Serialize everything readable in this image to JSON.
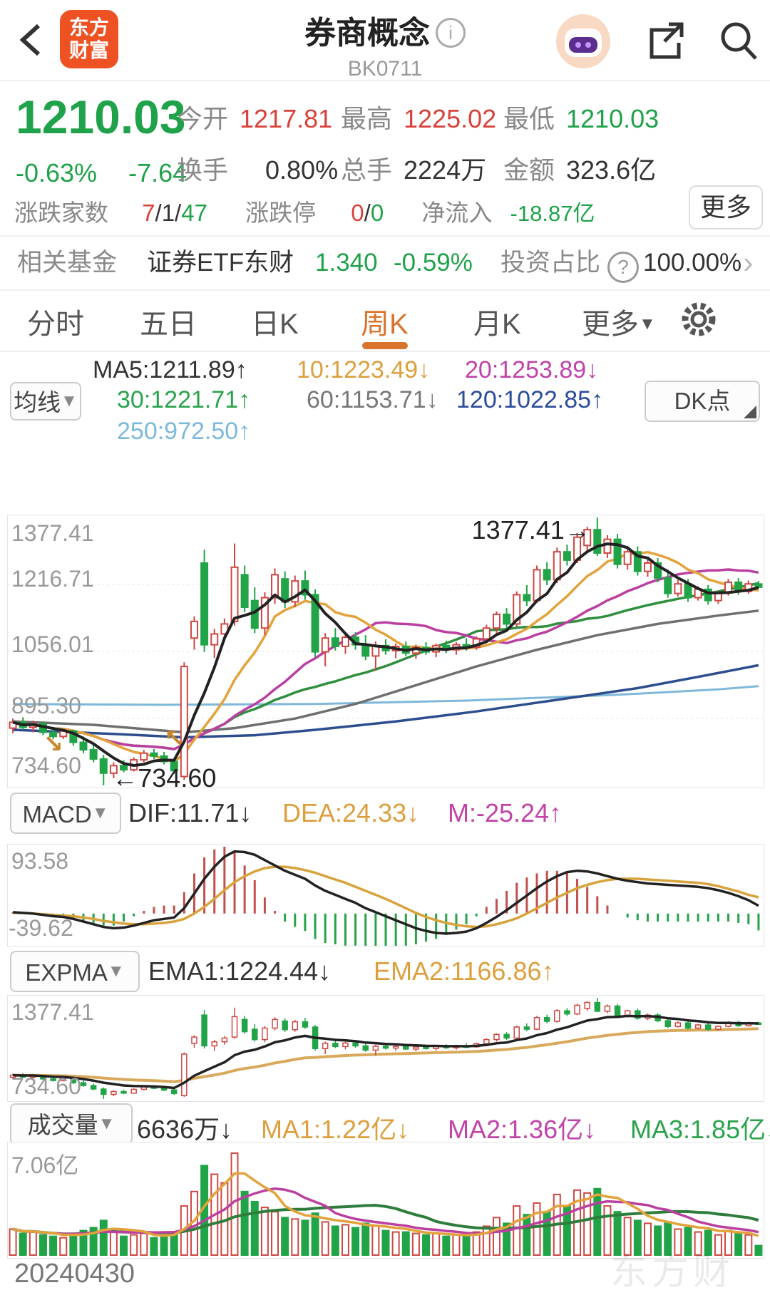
{
  "colors": {
    "up_red": "#cf4742",
    "down_green": "#21a447",
    "accent_orange": "#d9742d",
    "ma5": "#222222",
    "ma10": "#e3a33c",
    "ma20": "#bb3fa0",
    "ma30": "#2f8f3e",
    "ma60": "#6f6f6f",
    "ma120": "#2c4d8e",
    "ma250": "#7fb8d8",
    "dea_orange": "#d8a33c",
    "marker_gold": "#c8872b"
  },
  "header": {
    "logo_line1": "东方",
    "logo_line2": "财富",
    "title": "券商概念",
    "info": "i",
    "code": "BK0711"
  },
  "quote": {
    "price": "1210.03",
    "change_pct": "-0.63%",
    "change": "-7.64",
    "stats": [
      {
        "label": "今开",
        "value": "1217.81"
      },
      {
        "label": "最高",
        "value": "1225.02"
      },
      {
        "label": "最低",
        "value": "1210.03"
      },
      {
        "label": "换手",
        "value": "0.80%"
      },
      {
        "label": "总手",
        "value": "2224万"
      },
      {
        "label": "金额",
        "value": "323.6亿"
      }
    ],
    "row3": {
      "label1": "涨跌家数",
      "up": "7",
      "mid": "/1/",
      "down": "47",
      "label2": "涨跌停",
      "zt": "0",
      "sep": "/",
      "dt": "0",
      "label3": "净流入",
      "inflow": "-18.87亿",
      "more": "更多"
    }
  },
  "fund": {
    "label": "相关基金",
    "name": "证券ETF东财",
    "nav": "1.340",
    "pct": "-0.59%",
    "ratio_label": "投资占比",
    "q": "?",
    "ratio": "100.00%",
    "chevron": "›"
  },
  "tabs": [
    {
      "label": "分时"
    },
    {
      "label": "五日"
    },
    {
      "label": "日K"
    },
    {
      "label": "周K"
    },
    {
      "label": "月K"
    },
    {
      "label": "更多"
    }
  ],
  "ma_panel": {
    "button": "均线",
    "dk_button": "DK点",
    "ma5": "MA5:1211.89↑",
    "ma10": "10:1223.49↓",
    "ma20": "20:1253.89↓",
    "ma30": "30:1221.71↑",
    "ma60": "60:1153.71↓",
    "ma120": "120:1022.85↑",
    "ma250": "250:972.50↑"
  },
  "main_chart": {
    "y_labels": [
      "1377.41",
      "1216.71",
      "1056.01",
      "895.30",
      "734.60"
    ],
    "high_annotation": "1377.41→",
    "low_annotation": "←734.60",
    "watermark": "东方财富"
  },
  "macd_panel": {
    "button": "MACD",
    "dif": "DIF:11.71↓",
    "dea": "DEA:24.33↓",
    "m": "M:-25.24↑",
    "ymax": "93.58",
    "ymin": "-39.62"
  },
  "expma_panel": {
    "button": "EXPMA",
    "ema1": "EMA1:1224.44↓",
    "ema2": "EMA2:1166.86↑",
    "ymax": "1377.41",
    "ymin": "734.60"
  },
  "vol_panel": {
    "button": "成交量",
    "vol": "6636万↓",
    "ma1": "MA1:1.22亿↓",
    "ma2": "MA2:1.36亿↓",
    "ma3": "MA3:1.85亿↓",
    "ymax": "7.06亿",
    "date": "20240430"
  },
  "chart_data": {
    "type": "candlestick",
    "title": "券商概念 BK0711 周K",
    "price_range": [
      734.6,
      1377.41
    ],
    "grid_prices": [
      1216.71,
      1056.01,
      895.3
    ],
    "macd_range": [
      -45,
      100
    ],
    "vol_range": [
      0,
      7.5
    ],
    "candles": [
      [
        872,
        895,
        860,
        886
      ],
      [
        886,
        898,
        868,
        874
      ],
      [
        874,
        890,
        862,
        882
      ],
      [
        882,
        888,
        855,
        862
      ],
      [
        862,
        875,
        845,
        852
      ],
      [
        852,
        870,
        846,
        865
      ],
      [
        865,
        868,
        830,
        838
      ],
      [
        838,
        852,
        812,
        820
      ],
      [
        820,
        832,
        790,
        798
      ],
      [
        798,
        808,
        734.6,
        764
      ],
      [
        764,
        790,
        752,
        782
      ],
      [
        782,
        795,
        766,
        772
      ],
      [
        772,
        802,
        768,
        796
      ],
      [
        796,
        820,
        790,
        812
      ],
      [
        812,
        822,
        798,
        805
      ],
      [
        805,
        815,
        785,
        792
      ],
      [
        792,
        800,
        762,
        770
      ],
      [
        756,
        1030,
        748,
        1020
      ],
      [
        1088,
        1140,
        1060,
        1128
      ],
      [
        1268,
        1300,
        1055,
        1072
      ],
      [
        1072,
        1110,
        1040,
        1098
      ],
      [
        1098,
        1135,
        1080,
        1122
      ],
      [
        1128,
        1315,
        1118,
        1258
      ],
      [
        1240,
        1262,
        1150,
        1162
      ],
      [
        1178,
        1210,
        1100,
        1112
      ],
      [
        1112,
        1198,
        1095,
        1185
      ],
      [
        1185,
        1255,
        1170,
        1240
      ],
      [
        1230,
        1248,
        1160,
        1175
      ],
      [
        1175,
        1238,
        1162,
        1225
      ],
      [
        1225,
        1250,
        1180,
        1192
      ],
      [
        1192,
        1205,
        1042,
        1055
      ],
      [
        1055,
        1100,
        1020,
        1088
      ],
      [
        1088,
        1112,
        1058,
        1068
      ],
      [
        1068,
        1098,
        1050,
        1090
      ],
      [
        1090,
        1102,
        1060,
        1072
      ],
      [
        1072,
        1095,
        1035,
        1045
      ],
      [
        1045,
        1080,
        1010,
        1070
      ],
      [
        1070,
        1085,
        1048,
        1058
      ],
      [
        1058,
        1075,
        1040,
        1068
      ],
      [
        1068,
        1080,
        1045,
        1052
      ],
      [
        1052,
        1072,
        1038,
        1065
      ],
      [
        1065,
        1078,
        1048,
        1055
      ],
      [
        1055,
        1075,
        1042,
        1070
      ],
      [
        1070,
        1082,
        1052,
        1060
      ],
      [
        1060,
        1078,
        1048,
        1072
      ],
      [
        1072,
        1088,
        1058,
        1066
      ],
      [
        1066,
        1092,
        1060,
        1086
      ],
      [
        1086,
        1120,
        1078,
        1112
      ],
      [
        1112,
        1152,
        1100,
        1145
      ],
      [
        1145,
        1160,
        1110,
        1122
      ],
      [
        1122,
        1200,
        1115,
        1192
      ],
      [
        1192,
        1215,
        1165,
        1178
      ],
      [
        1178,
        1262,
        1172,
        1252
      ],
      [
        1252,
        1270,
        1215,
        1228
      ],
      [
        1228,
        1305,
        1220,
        1295
      ],
      [
        1295,
        1312,
        1262,
        1275
      ],
      [
        1275,
        1340,
        1268,
        1330
      ],
      [
        1310,
        1355,
        1295,
        1348
      ],
      [
        1348,
        1377.41,
        1285,
        1292
      ],
      [
        1292,
        1335,
        1280,
        1325
      ],
      [
        1325,
        1338,
        1255,
        1265
      ],
      [
        1265,
        1302,
        1252,
        1295
      ],
      [
        1295,
        1308,
        1238,
        1248
      ],
      [
        1248,
        1278,
        1235,
        1268
      ],
      [
        1268,
        1280,
        1222,
        1232
      ],
      [
        1232,
        1252,
        1185,
        1195
      ],
      [
        1195,
        1228,
        1188,
        1218
      ],
      [
        1218,
        1230,
        1175,
        1185
      ],
      [
        1185,
        1212,
        1178,
        1205
      ],
      [
        1205,
        1215,
        1168,
        1178
      ],
      [
        1178,
        1202,
        1170,
        1196
      ],
      [
        1196,
        1230,
        1190,
        1222
      ],
      [
        1222,
        1232,
        1192,
        1200
      ],
      [
        1200,
        1226,
        1194,
        1218
      ],
      [
        1217.81,
        1225.02,
        1210.03,
        1210.03
      ]
    ],
    "volumes": [
      1.8,
      1.5,
      1.6,
      1.4,
      1.3,
      1.2,
      1.5,
      1.7,
      1.9,
      2.4,
      1.6,
      1.3,
      1.4,
      1.5,
      1.2,
      1.3,
      1.6,
      3.4,
      4.4,
      6.2,
      5.6,
      5.0,
      7.06,
      4.4,
      3.7,
      3.3,
      3.0,
      2.6,
      2.5,
      2.4,
      2.9,
      2.3,
      2.0,
      2.1,
      1.9,
      2.2,
      2.0,
      1.7,
      1.6,
      1.6,
      1.5,
      1.4,
      1.5,
      1.3,
      1.4,
      1.3,
      1.6,
      2.0,
      2.6,
      2.2,
      3.4,
      2.8,
      3.6,
      3.0,
      4.2,
      3.4,
      4.5,
      4.3,
      4.6,
      3.4,
      3.0,
      2.6,
      2.4,
      2.2,
      2.0,
      2.3,
      1.8,
      1.9,
      1.6,
      1.7,
      1.4,
      1.7,
      1.5,
      1.4,
      0.66
    ],
    "macd": {
      "dif": [
        2,
        1,
        0,
        -2,
        -4,
        -5,
        -8,
        -12,
        -16,
        -20,
        -22,
        -21,
        -18,
        -14,
        -10,
        -8,
        -6,
        8,
        30,
        52,
        70,
        85,
        93,
        92,
        88,
        80,
        72,
        64,
        58,
        52,
        42,
        34,
        28,
        22,
        16,
        8,
        2,
        -4,
        -10,
        -16,
        -22,
        -26,
        -29,
        -30,
        -29,
        -27,
        -22,
        -14,
        -5,
        5,
        16,
        27,
        38,
        48,
        56,
        62,
        64,
        63,
        60,
        56,
        52,
        49,
        47,
        45,
        44,
        43,
        42,
        41,
        40,
        38,
        35,
        31,
        26,
        20,
        11.71
      ],
      "dea": [
        1,
        1,
        0,
        -1,
        -2,
        -3,
        -4,
        -6,
        -8,
        -11,
        -13,
        -15,
        -16,
        -16,
        -15,
        -14,
        -12,
        -8,
        0,
        10,
        22,
        35,
        47,
        56,
        63,
        68,
        70,
        70,
        68,
        65,
        61,
        56,
        51,
        46,
        40,
        34,
        28,
        22,
        15,
        8,
        1,
        -5,
        -10,
        -14,
        -17,
        -19,
        -20,
        -19,
        -16,
        -12,
        -7,
        0,
        8,
        16,
        24,
        31,
        38,
        43,
        47,
        50,
        52,
        52,
        52,
        51,
        50,
        49,
        48,
        47,
        46,
        44,
        41,
        37,
        33,
        28,
        24.33
      ]
    },
    "ma_overlays": {
      "ma60": [
        [
          0,
          888
        ],
        [
          8,
          880
        ],
        [
          14,
          868
        ],
        [
          17,
          862
        ],
        [
          22,
          872
        ],
        [
          28,
          895
        ],
        [
          34,
          930
        ],
        [
          40,
          975
        ],
        [
          46,
          1020
        ],
        [
          52,
          1060
        ],
        [
          58,
          1095
        ],
        [
          64,
          1122
        ],
        [
          70,
          1142
        ],
        [
          74,
          1153.71
        ]
      ],
      "ma120": [
        [
          0,
          868
        ],
        [
          10,
          858
        ],
        [
          17,
          850
        ],
        [
          24,
          855
        ],
        [
          30,
          868
        ],
        [
          38,
          888
        ],
        [
          46,
          912
        ],
        [
          54,
          940
        ],
        [
          62,
          968
        ],
        [
          68,
          995
        ],
        [
          74,
          1022.85
        ]
      ],
      "ma250": [
        [
          0,
          930
        ],
        [
          15,
          928
        ],
        [
          30,
          930
        ],
        [
          45,
          938
        ],
        [
          60,
          952
        ],
        [
          70,
          965
        ],
        [
          74,
          972.5
        ]
      ]
    },
    "markers": [
      {
        "index": 4,
        "price": 815,
        "glyph": "↘"
      },
      {
        "index": 16,
        "price": 828,
        "glyph": "↖"
      }
    ]
  }
}
